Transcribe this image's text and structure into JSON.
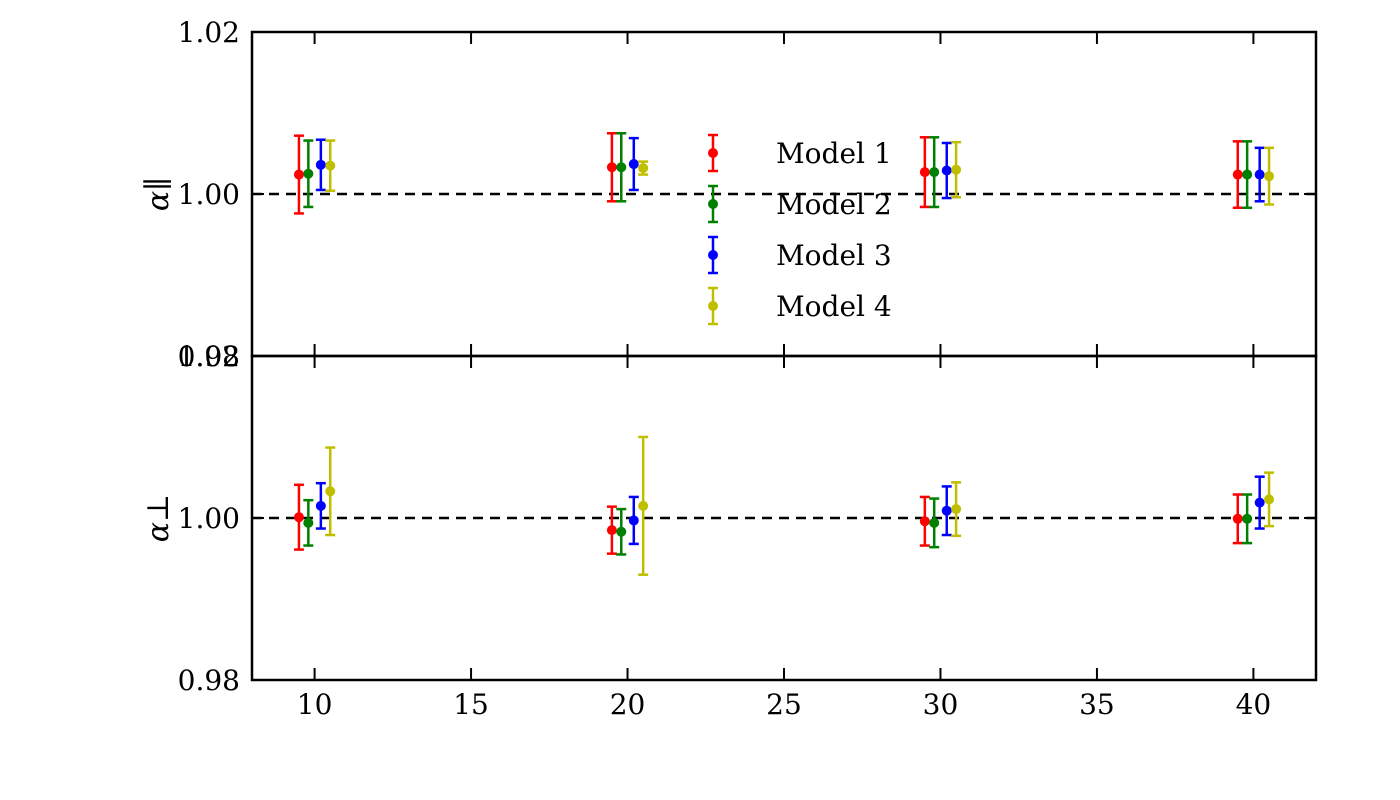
{
  "chart_data": [
    {
      "type": "scatter",
      "panel": "top",
      "ylabel": "α∥",
      "xlim": [
        8,
        42
      ],
      "ylim": [
        0.98,
        1.02
      ],
      "yticks": [
        "1.02",
        "1.00",
        "0.98"
      ],
      "xticks": [
        10,
        15,
        20,
        25,
        30,
        35,
        40
      ],
      "show_x_tick_labels": false,
      "reference_line": 1.0,
      "legend_position": "center",
      "series": [
        {
          "name": "Model 1",
          "color": "#ff0000",
          "x": [
            9.5,
            19.5,
            29.5,
            39.5
          ],
          "y": [
            1.0024,
            1.0033,
            1.0027,
            1.0024
          ],
          "err": [
            0.0048,
            0.0042,
            0.0043,
            0.0041
          ]
        },
        {
          "name": "Model 2",
          "color": "#008000",
          "x": [
            9.8,
            19.8,
            29.8,
            39.8
          ],
          "y": [
            1.0025,
            1.0033,
            1.0027,
            1.0024
          ],
          "err": [
            0.0041,
            0.0042,
            0.0043,
            0.0041
          ]
        },
        {
          "name": "Model 3",
          "color": "#0000ff",
          "x": [
            10.2,
            20.2,
            30.2,
            40.2
          ],
          "y": [
            1.0036,
            1.0037,
            1.0029,
            1.0024
          ],
          "err": [
            0.0031,
            0.0032,
            0.0034,
            0.0033
          ]
        },
        {
          "name": "Model 4",
          "color": "#bfbf00",
          "x": [
            10.5,
            20.5,
            30.5,
            40.5
          ],
          "y": [
            1.0035,
            1.0032,
            1.003,
            1.0022
          ],
          "err": [
            0.0031,
            0.0008,
            0.0034,
            0.0035
          ]
        }
      ]
    },
    {
      "type": "scatter",
      "panel": "bottom",
      "ylabel": "α⊥",
      "xlim": [
        8,
        42
      ],
      "ylim": [
        0.98,
        1.02
      ],
      "yticks": [
        "1.02",
        "1.00",
        "0.98"
      ],
      "xticks": [
        10,
        15,
        20,
        25,
        30,
        35,
        40
      ],
      "xtick_labels": [
        "10",
        "15",
        "20",
        "25",
        "30",
        "35",
        "40"
      ],
      "reference_line": 1.0,
      "series": [
        {
          "name": "Model 1",
          "color": "#ff0000",
          "x": [
            9.5,
            19.5,
            29.5,
            39.5
          ],
          "y": [
            1.0001,
            0.9985,
            0.9996,
            0.9999
          ],
          "err": [
            0.004,
            0.0029,
            0.003,
            0.003
          ]
        },
        {
          "name": "Model 2",
          "color": "#008000",
          "x": [
            9.8,
            19.8,
            29.8,
            39.8
          ],
          "y": [
            0.9994,
            0.9983,
            0.9994,
            0.9999
          ],
          "err": [
            0.0028,
            0.0028,
            0.003,
            0.003
          ]
        },
        {
          "name": "Model 3",
          "color": "#0000ff",
          "x": [
            10.2,
            20.2,
            30.2,
            40.2
          ],
          "y": [
            1.0015,
            0.9997,
            1.0009,
            1.0019
          ],
          "err": [
            0.0028,
            0.0029,
            0.003,
            0.0032
          ]
        },
        {
          "name": "Model 4",
          "color": "#bfbf00",
          "x": [
            10.5,
            20.5,
            30.5,
            40.5
          ],
          "y": [
            1.0033,
            1.0015,
            1.0011,
            1.0023
          ],
          "err": [
            0.0054,
            0.0085,
            0.0033,
            0.0033
          ]
        }
      ]
    }
  ]
}
